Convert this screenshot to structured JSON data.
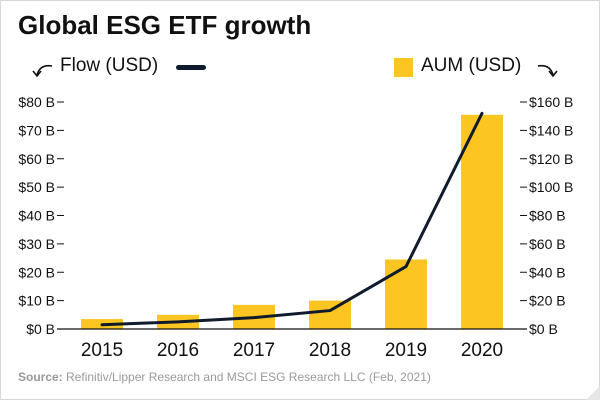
{
  "title": "Global ESG ETF growth",
  "legend": {
    "flow_label": "Flow (USD)",
    "aum_label": "AUM (USD)"
  },
  "source": {
    "label": "Source:",
    "text": "Refinitiv/Lipper Research and MSCI ESG Research LLC  (Feb, 2021)"
  },
  "colors": {
    "bar": "#fcc521",
    "line": "#0f1b2d",
    "grid": "#cfcfcf",
    "axis": "#111111"
  },
  "chart_data": {
    "type": "bar",
    "title": "Global ESG ETF growth",
    "categories": [
      "2015",
      "2016",
      "2017",
      "2018",
      "2019",
      "2020"
    ],
    "series": [
      {
        "name": "AUM (USD)",
        "type": "bar",
        "axis": "right",
        "values": [
          7,
          10,
          17,
          20,
          49,
          151
        ]
      },
      {
        "name": "Flow (USD)",
        "type": "line",
        "axis": "left",
        "values": [
          1.5,
          2.5,
          4,
          6.5,
          22,
          76
        ]
      }
    ],
    "left_axis": {
      "ylim": [
        0,
        80
      ],
      "ticks": [
        0,
        10,
        20,
        30,
        40,
        50,
        60,
        70,
        80
      ],
      "tick_labels": [
        "$0 B",
        "$10 B",
        "$20 B",
        "$30 B",
        "$40 B",
        "$50 B",
        "$60 B",
        "$70 B",
        "$80 B"
      ]
    },
    "right_axis": {
      "ylim": [
        0,
        160
      ],
      "ticks": [
        0,
        20,
        40,
        60,
        80,
        100,
        120,
        140,
        160
      ],
      "tick_labels": [
        "$0 B",
        "$20 B",
        "$40 B",
        "$60 B",
        "$80 B",
        "$100 B",
        "$120 B",
        "$140 B",
        "$160 B"
      ]
    },
    "grid": false,
    "legend_position": "top"
  }
}
